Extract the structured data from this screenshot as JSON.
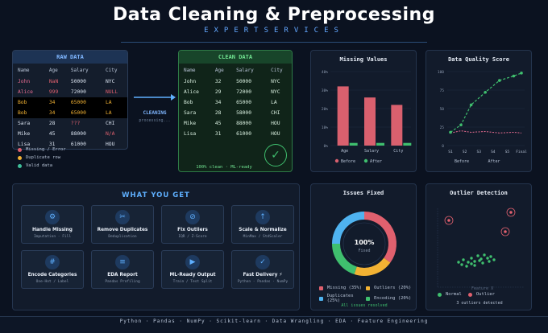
{
  "header": {
    "title": "Data Cleaning & Preprocessing",
    "subtitle": "EXPERTSERVICES"
  },
  "raw": {
    "title": "RAW DATA",
    "columns": [
      "Name",
      "Age",
      "Salary",
      "City"
    ],
    "rows": [
      {
        "name": "John",
        "age": "NaN",
        "salary": "50000",
        "city": "NYC"
      },
      {
        "name": "Alice",
        "age": "999",
        "salary": "72000",
        "city": "NULL"
      },
      {
        "name": "Bob",
        "age": "34",
        "salary": "65000",
        "city": "LA"
      },
      {
        "name": "Bob",
        "age": "34",
        "salary": "65000",
        "city": "LA"
      },
      {
        "name": "Sara",
        "age": "28",
        "salary": "???",
        "city": "CHI"
      },
      {
        "name": "Mike",
        "age": "45",
        "salary": "88000",
        "city": "N/A"
      },
      {
        "name": "Lisa",
        "age": "31",
        "salary": "61000",
        "city": "HOU"
      }
    ],
    "legend": [
      "Missing / Error",
      "Duplicate row",
      "Valid data"
    ]
  },
  "arrow": {
    "label": "CLEANING",
    "sub": "processing..."
  },
  "clean": {
    "title": "CLEAN DATA",
    "columns": [
      "Name",
      "Age",
      "Salary",
      "City"
    ],
    "rows": [
      {
        "name": "John",
        "age": "32",
        "salary": "50000",
        "city": "NYC"
      },
      {
        "name": "Alice",
        "age": "29",
        "salary": "72000",
        "city": "NYC"
      },
      {
        "name": "Bob",
        "age": "34",
        "salary": "65000",
        "city": "LA"
      },
      {
        "name": "Sara",
        "age": "28",
        "salary": "58000",
        "city": "CHI"
      },
      {
        "name": "Mike",
        "age": "45",
        "salary": "88000",
        "city": "HOU"
      },
      {
        "name": "Lisa",
        "age": "31",
        "salary": "61000",
        "city": "HOU"
      }
    ],
    "footer": "100% clean · ML-ready"
  },
  "missing": {
    "title": "Missing Values",
    "categories": [
      "Age",
      "Salary",
      "City"
    ],
    "ticks": [
      "40%",
      "30%",
      "20%",
      "10%",
      "0%"
    ],
    "before": [
      32,
      26,
      22
    ],
    "after": [
      1,
      1,
      1
    ],
    "legend": [
      "Before",
      "After"
    ]
  },
  "quality": {
    "title": "Data Quality Score",
    "ticks": [
      "100",
      "75",
      "50",
      "25",
      "0"
    ],
    "x_labels": [
      "S1",
      "S2",
      "S3",
      "S4",
      "S5",
      "Final"
    ],
    "before_label": "Before",
    "after_label": "After"
  },
  "what": {
    "title": "WHAT YOU GET",
    "cards": [
      {
        "icon": "⚙",
        "title": "Handle Missing",
        "sub": "Imputation · Fill"
      },
      {
        "icon": "✂",
        "title": "Remove Duplicates",
        "sub": "Deduplication"
      },
      {
        "icon": "⊘",
        "title": "Fix Outliers",
        "sub": "IQR / Z-Score"
      },
      {
        "icon": "↑",
        "title": "Scale & Normalize",
        "sub": "MinMax / StdScaler"
      },
      {
        "icon": "#",
        "title": "Encode Categories",
        "sub": "One-Hot / Label"
      },
      {
        "icon": "≡",
        "title": "EDA Report",
        "sub": "Pandas Profiling"
      },
      {
        "icon": "▶",
        "title": "ML-Ready Output",
        "sub": "Train / Test Split"
      },
      {
        "icon": "✓",
        "title": "Fast Delivery ⚡",
        "sub": "Python · Pandas · NumPy"
      }
    ]
  },
  "issues": {
    "title": "Issues Fixed",
    "center": "100%",
    "center_sub": "Fixed",
    "slices": [
      {
        "label": "Missing (35%)",
        "value": 35,
        "color": "#e0606e"
      },
      {
        "label": "Outliers (20%)",
        "value": 20,
        "color": "#f2b233"
      },
      {
        "label": "Duplicates (25%)",
        "value": 25,
        "color": "#4fb3f0"
      },
      {
        "label": "Encoding (20%)",
        "value": 20,
        "color": "#3fbf6e"
      }
    ],
    "footer": "All issues resolved"
  },
  "outlier": {
    "title": "Outlier Detection",
    "legend": [
      "Normal",
      "Outlier"
    ],
    "annotation": "Feature X",
    "footer": "3 outliers detected"
  },
  "footer": "Python · Pandas · NumPy · Scikit-learn · Data Wrangling · EDA · Feature Engineering"
}
